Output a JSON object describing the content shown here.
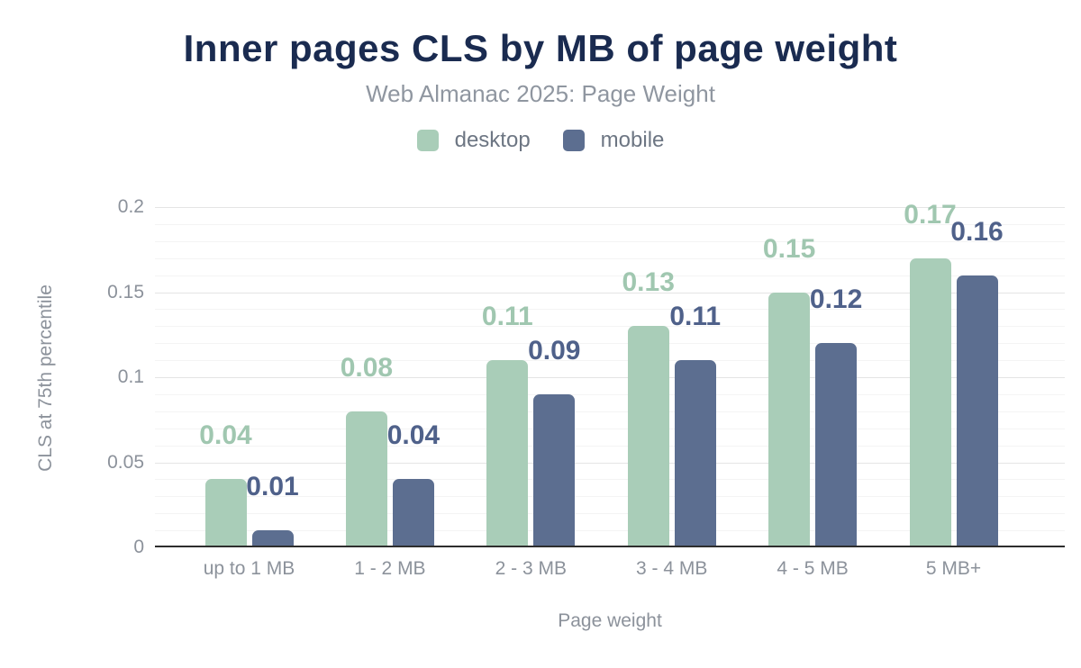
{
  "header": {
    "title": "Inner pages CLS by MB of page weight",
    "subtitle": "Web Almanac 2025: Page Weight"
  },
  "axes": {
    "y_title": "CLS at 75th percentile",
    "x_title": "Page weight",
    "y_tick_labels": [
      "0",
      "0.05",
      "0.1",
      "0.15",
      "0.2"
    ]
  },
  "colors": {
    "title": "#1a2b50",
    "subtitle": "#8f96a0",
    "legend_text": "#6d7683",
    "axis_text": "#8c929b",
    "axis_line": "#2e2e2e",
    "gridline_major": "#e4e4e4",
    "gridline_minor": "#f4f4f4",
    "desktop": "#a9cdb8",
    "desktop_label": "#a0c7b0",
    "mobile": "#5c6e90",
    "mobile_label": "#4f618a",
    "background": "#ffffff"
  },
  "chart_data": {
    "type": "bar",
    "title": "Inner pages CLS by MB of page weight",
    "subtitle": "Web Almanac 2025: Page Weight",
    "categories": [
      "up to 1 MB",
      "1 - 2 MB",
      "2 - 3 MB",
      "3 - 4 MB",
      "4 - 5 MB",
      "5 MB+"
    ],
    "series": [
      {
        "name": "desktop",
        "color": "#a9cdb8",
        "label_color": "#a0c7b0",
        "values": [
          0.04,
          0.08,
          0.11,
          0.13,
          0.15,
          0.17
        ]
      },
      {
        "name": "mobile",
        "color": "#5c6e90",
        "label_color": "#4f618a",
        "values": [
          0.01,
          0.04,
          0.09,
          0.11,
          0.12,
          0.16
        ]
      }
    ],
    "xlabel": "Page weight",
    "ylabel": "CLS at 75th percentile",
    "ylim": [
      0,
      0.2
    ],
    "y_ticks": [
      0,
      0.05,
      0.1,
      0.15,
      0.2
    ],
    "grid": "horizontal; minor every 0.01, major every 0.05",
    "legend_position": "top center",
    "value_labels": "two-decimal values shown above each bar"
  }
}
